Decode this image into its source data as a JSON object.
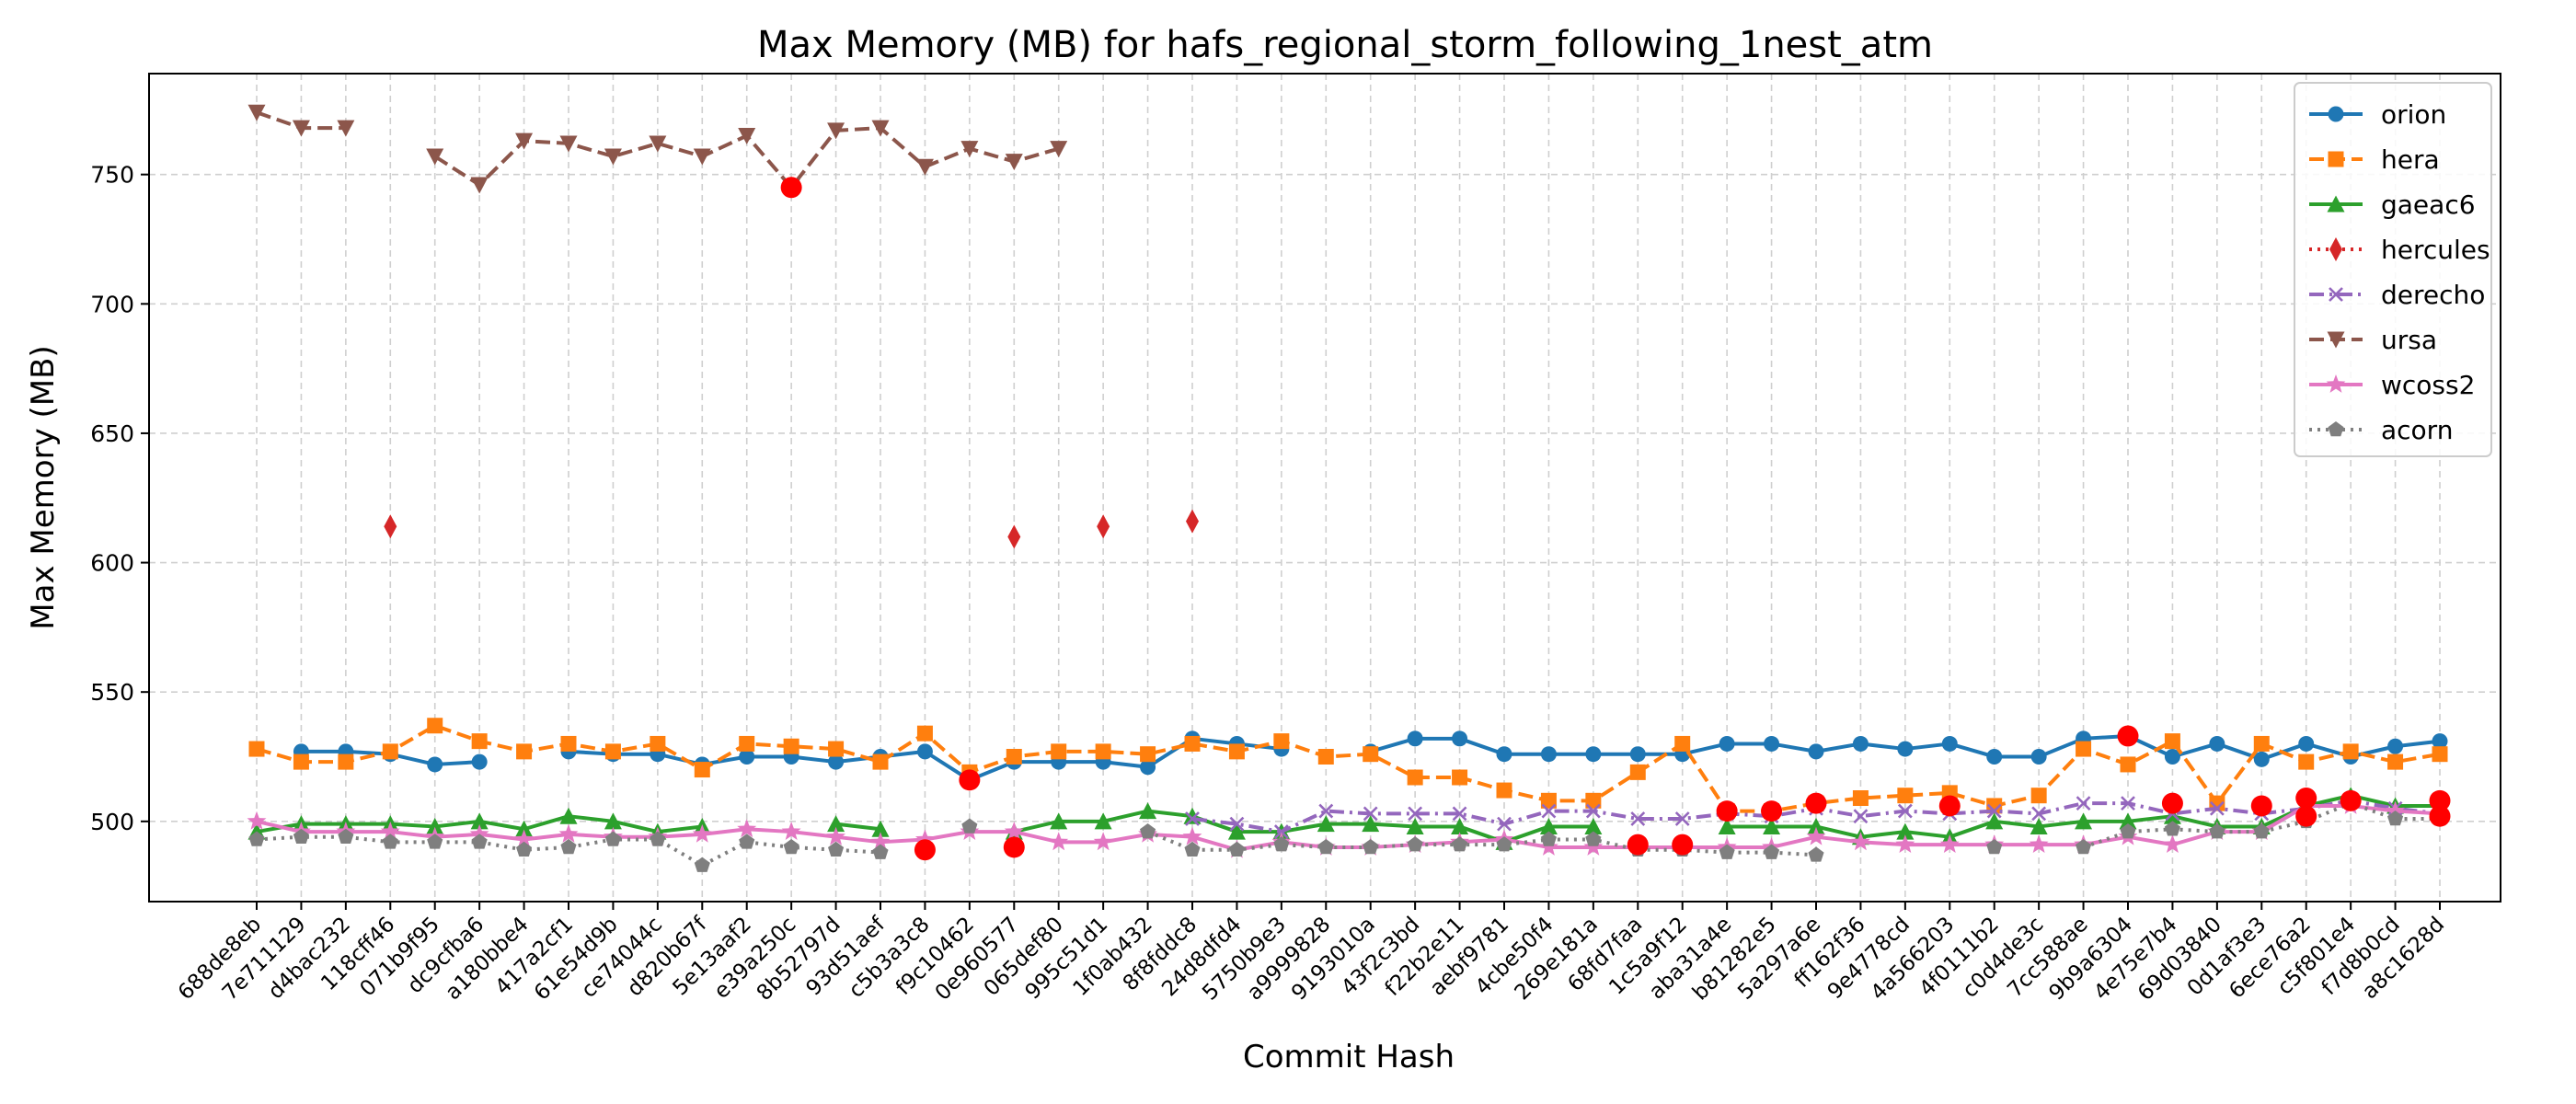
{
  "chart_data": {
    "type": "line",
    "title": "Max Memory (MB) for hafs_regional_storm_following_1nest_atm",
    "xlabel": "Commit Hash",
    "ylabel": "Max Memory (MB)",
    "ylim": [
      469,
      789
    ],
    "yticks": [
      500,
      550,
      600,
      650,
      700,
      750
    ],
    "grid": true,
    "legend_position": "top-right",
    "categories": [
      "688de8eb",
      "7e711129",
      "d4bac232",
      "118cff46",
      "071b9f95",
      "dc9cfba6",
      "a180bbe4",
      "417a2cf1",
      "61e54d9b",
      "ce74044c",
      "d820b67f",
      "5e13aaf2",
      "e39a250c",
      "8b52797d",
      "93d51aef",
      "c5b3a3c8",
      "f9c10462",
      "0e960577",
      "065def80",
      "995c51d1",
      "1f0ab432",
      "8f8fddc8",
      "24d8dfd4",
      "5750b9e3",
      "a9999828",
      "9193010a",
      "43f2c3bd",
      "f22b2e11",
      "aebf9781",
      "4cbe50f4",
      "269e181a",
      "68fd7faa",
      "1c5a9f12",
      "aba31a4e",
      "b81282e5",
      "5a297a6e",
      "ff162f36",
      "9e4778cd",
      "4a566203",
      "4f0111b2",
      "c0d4de3c",
      "7cc588ae",
      "9b9a6304",
      "4e75e7b4",
      "69d03840",
      "0d1af3e3",
      "6ece76a2",
      "c5f801e4",
      "f7d8b0cd",
      "a8c1628d"
    ],
    "series": [
      {
        "name": "orion",
        "color": "#1f77b4",
        "marker": "circle",
        "dash": "solid",
        "values": [
          null,
          527,
          527,
          526,
          522,
          523,
          null,
          527,
          526,
          526,
          522,
          525,
          525,
          523,
          525,
          527,
          516,
          523,
          523,
          523,
          521,
          532,
          530,
          528,
          null,
          527,
          532,
          532,
          526,
          526,
          526,
          526,
          526,
          530,
          530,
          527,
          530,
          528,
          530,
          525,
          525,
          532,
          533,
          525,
          530,
          524,
          530,
          525,
          529,
          531
        ]
      },
      {
        "name": "hera",
        "color": "#ff7f0e",
        "marker": "square",
        "dash": "dashed",
        "values": [
          528,
          523,
          523,
          527,
          537,
          531,
          527,
          530,
          527,
          530,
          520,
          530,
          529,
          528,
          523,
          534,
          519,
          525,
          527,
          527,
          526,
          530,
          527,
          531,
          525,
          526,
          517,
          517,
          512,
          508,
          508,
          519,
          530,
          504,
          504,
          507,
          509,
          510,
          511,
          506,
          510,
          528,
          522,
          531,
          507,
          530,
          523,
          527,
          523,
          526
        ]
      },
      {
        "name": "gaeac6",
        "color": "#2ca02c",
        "marker": "triangle-up",
        "dash": "solid",
        "values": [
          496,
          499,
          499,
          499,
          498,
          500,
          497,
          502,
          500,
          496,
          498,
          null,
          null,
          499,
          497,
          null,
          null,
          496,
          500,
          500,
          504,
          502,
          496,
          496,
          499,
          499,
          498,
          498,
          492,
          498,
          498,
          null,
          null,
          498,
          498,
          498,
          494,
          496,
          494,
          500,
          498,
          500,
          500,
          502,
          498,
          498,
          506,
          510,
          506,
          506
        ]
      },
      {
        "name": "hercules",
        "color": "#d62728",
        "marker": "diamond",
        "dash": "dotted",
        "values": [
          null,
          null,
          null,
          614,
          null,
          null,
          null,
          null,
          null,
          null,
          null,
          null,
          null,
          null,
          null,
          null,
          null,
          610,
          null,
          614,
          null,
          616,
          null,
          null,
          null,
          null,
          null,
          null,
          null,
          null,
          null,
          null,
          null,
          null,
          null,
          null,
          null,
          null,
          null,
          null,
          null,
          null,
          null,
          null,
          null,
          null,
          null,
          null,
          null,
          null
        ]
      },
      {
        "name": "derecho",
        "color": "#9467bd",
        "marker": "x",
        "dash": "dashdot",
        "values": [
          null,
          null,
          null,
          null,
          null,
          null,
          null,
          null,
          null,
          null,
          null,
          null,
          null,
          null,
          null,
          null,
          null,
          null,
          null,
          null,
          null,
          501,
          499,
          496,
          504,
          503,
          503,
          503,
          499,
          504,
          504,
          501,
          501,
          503,
          502,
          505,
          502,
          504,
          503,
          504,
          503,
          507,
          507,
          503,
          505,
          503,
          505,
          508,
          505,
          503
        ]
      },
      {
        "name": "ursa",
        "color": "#8c564b",
        "marker": "triangle-down",
        "dash": "dashed",
        "values": [
          774,
          768,
          768,
          null,
          757,
          746,
          763,
          762,
          757,
          762,
          757,
          765,
          745,
          767,
          768,
          753,
          760,
          755,
          760,
          null,
          null,
          null,
          null,
          null,
          null,
          null,
          null,
          null,
          null,
          null,
          null,
          null,
          null,
          null,
          null,
          null,
          null,
          null,
          null,
          null,
          null,
          null,
          null,
          null,
          null,
          null,
          null,
          null,
          null,
          null
        ]
      },
      {
        "name": "wcoss2",
        "color": "#e377c2",
        "marker": "star",
        "dash": "solid",
        "values": [
          500,
          496,
          496,
          496,
          494,
          495,
          493,
          495,
          494,
          494,
          495,
          497,
          496,
          494,
          492,
          493,
          496,
          496,
          492,
          492,
          495,
          494,
          489,
          492,
          490,
          490,
          491,
          492,
          493,
          490,
          490,
          490,
          490,
          490,
          490,
          494,
          492,
          491,
          491,
          491,
          491,
          491,
          494,
          491,
          496,
          496,
          506,
          506,
          504,
          503
        ]
      },
      {
        "name": "acorn",
        "color": "#7f7f7f",
        "marker": "pentagon",
        "dash": "dotted",
        "values": [
          493,
          494,
          494,
          492,
          492,
          492,
          489,
          490,
          493,
          493,
          483,
          492,
          490,
          489,
          488,
          null,
          498,
          null,
          null,
          null,
          496,
          489,
          489,
          491,
          490,
          490,
          491,
          491,
          491,
          493,
          493,
          489,
          489,
          488,
          488,
          487,
          null,
          null,
          null,
          490,
          null,
          490,
          496,
          497,
          496,
          496,
          500,
          507,
          501,
          501
        ]
      }
    ],
    "highlighted_points": [
      {
        "category": "e39a250c",
        "value": 745
      },
      {
        "category": "c5b3a3c8",
        "value": 489
      },
      {
        "category": "f9c10462",
        "value": 516
      },
      {
        "category": "0e960577",
        "value": 490
      },
      {
        "category": "1c5a9f12",
        "value": 491
      },
      {
        "category": "68fd7faa",
        "value": 491
      },
      {
        "category": "aba31a4e",
        "value": 504
      },
      {
        "category": "b81282e5",
        "value": 504
      },
      {
        "category": "5a297a6e",
        "value": 507
      },
      {
        "category": "4a566203",
        "value": 506
      },
      {
        "category": "9b9a6304",
        "value": 533
      },
      {
        "category": "4e75e7b4",
        "value": 507
      },
      {
        "category": "0d1af3e3",
        "value": 506
      },
      {
        "category": "6ece76a2",
        "value": 509
      },
      {
        "category": "6ece76a2",
        "value": 502
      },
      {
        "category": "c5f801e4",
        "value": 508
      },
      {
        "category": "a8c1628d",
        "value": 508
      },
      {
        "category": "a8c1628d",
        "value": 502
      }
    ],
    "highlight_color": "#ff0000"
  }
}
